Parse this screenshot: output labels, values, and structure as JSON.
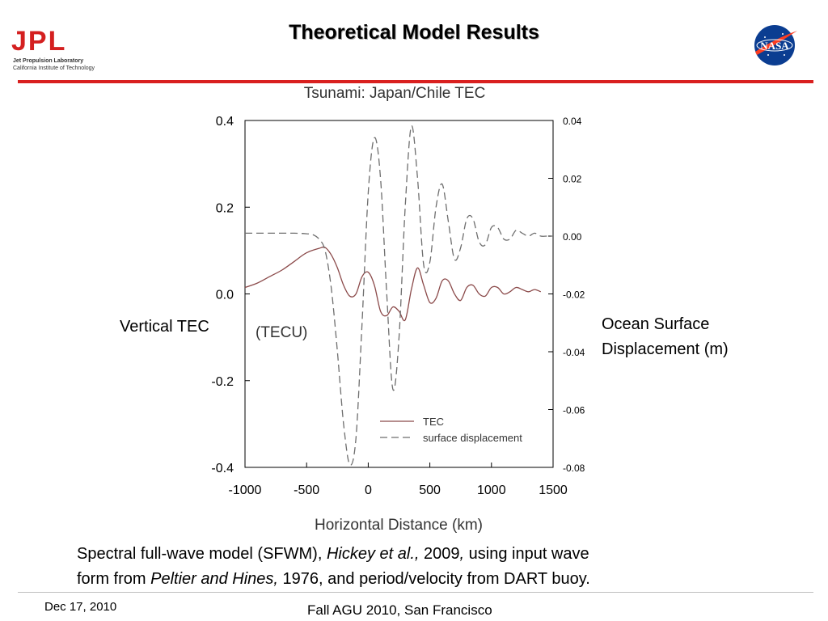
{
  "slide": {
    "title": "Theoretical Model Results",
    "logo_left": {
      "name": "JPL",
      "line1": "Jet Propulsion Laboratory",
      "line2": "California Institute of Technology"
    },
    "logo_right": "NASA",
    "left_axis_label_overlay": "Vertical TEC",
    "right_axis_label": [
      "Ocean Surface",
      "Displacement (m)"
    ],
    "caption": {
      "line1_parts": [
        {
          "text": "Spectral full-wave model (SFWM), ",
          "italic": false
        },
        {
          "text": "Hickey et al.,",
          "italic": true
        },
        {
          "text": " 2009",
          "italic": false
        },
        {
          "text": ",",
          "italic": true
        },
        {
          "text": " using input wave",
          "italic": false
        }
      ],
      "line2_parts": [
        {
          "text": "form from ",
          "italic": false
        },
        {
          "text": "Peltier and Hines,",
          "italic": true
        },
        {
          "text": " 1976, and period/velocity from DART buoy.",
          "italic": false
        }
      ]
    },
    "footer_date": "Dec 17, 2010",
    "footer_event": "Fall AGU 2010, San Francisco",
    "colors": {
      "accent_red": "#d9201f",
      "jpl_red": "#d42020",
      "tec_line": "#8b4a4a",
      "displacement_line": "#6e6e6e"
    }
  },
  "chart_data": {
    "type": "line",
    "title": "Tsunami: Japan/Chile TEC",
    "xlabel": "Horizontal Distance (km)",
    "ylabel_left_partial": "(TECU)",
    "xlim": [
      -1000,
      1500
    ],
    "ylim_left": [
      -0.4,
      0.4
    ],
    "ylim_right": [
      -0.08,
      0.04
    ],
    "x_ticks": [
      -1000,
      -500,
      0,
      500,
      1000,
      1500
    ],
    "x_tick_labels": [
      "-1000",
      "-500",
      "0",
      "500",
      "1000",
      "1500"
    ],
    "y_left_ticks": [
      -0.4,
      -0.2,
      0.0,
      0.2,
      0.4
    ],
    "y_left_tick_labels": [
      "-0.4",
      "-0.2",
      "0.0",
      "0.2",
      "0.4"
    ],
    "y_right_ticks": [
      -0.08,
      -0.06,
      -0.04,
      -0.02,
      0.0,
      0.02,
      0.04
    ],
    "y_right_tick_labels": [
      "-0.08",
      "-0.06",
      "-0.04",
      "-0.02",
      "0.00",
      "0.02",
      "0.04"
    ],
    "legend_position": "bottom-right",
    "series": [
      {
        "name": "TEC",
        "axis": "left",
        "style": "solid",
        "x": [
          -1000,
          -900,
          -800,
          -700,
          -600,
          -500,
          -400,
          -350,
          -300,
          -250,
          -200,
          -150,
          -100,
          -50,
          0,
          50,
          100,
          150,
          200,
          250,
          300,
          350,
          400,
          450,
          500,
          550,
          600,
          650,
          700,
          750,
          800,
          850,
          900,
          950,
          1000,
          1050,
          1100,
          1150,
          1200,
          1250,
          1300,
          1350,
          1400
        ],
        "y": [
          0.015,
          0.025,
          0.04,
          0.055,
          0.075,
          0.095,
          0.105,
          0.107,
          0.09,
          0.06,
          0.02,
          -0.005,
          0.0,
          0.04,
          0.05,
          0.02,
          -0.04,
          -0.05,
          -0.03,
          -0.04,
          -0.06,
          0.01,
          0.06,
          0.02,
          -0.02,
          -0.01,
          0.03,
          0.03,
          0.0,
          -0.015,
          0.015,
          0.02,
          0.0,
          -0.005,
          0.015,
          0.015,
          0.0,
          0.005,
          0.015,
          0.01,
          0.005,
          0.01,
          0.005
        ]
      },
      {
        "name": "surface displacement",
        "axis": "right",
        "style": "dashed",
        "x": [
          -1000,
          -800,
          -600,
          -500,
          -450,
          -400,
          -350,
          -300,
          -250,
          -200,
          -150,
          -100,
          -50,
          0,
          50,
          100,
          150,
          200,
          250,
          300,
          350,
          400,
          450,
          500,
          550,
          600,
          650,
          700,
          750,
          800,
          850,
          900,
          950,
          1000,
          1050,
          1100,
          1150,
          1200,
          1250,
          1300,
          1350,
          1400,
          1450,
          1500
        ],
        "y": [
          0.001,
          0.001,
          0.001,
          0.0008,
          0.0005,
          -0.001,
          -0.005,
          -0.018,
          -0.04,
          -0.065,
          -0.079,
          -0.07,
          -0.03,
          0.015,
          0.034,
          0.02,
          -0.02,
          -0.053,
          -0.035,
          0.01,
          0.038,
          0.02,
          -0.01,
          -0.009,
          0.01,
          0.018,
          0.005,
          -0.008,
          -0.004,
          0.006,
          0.006,
          -0.002,
          -0.003,
          0.003,
          0.003,
          -0.001,
          -0.001,
          0.002,
          0.001,
          0.0,
          0.001,
          0.0,
          0.0,
          0.0
        ]
      }
    ]
  }
}
